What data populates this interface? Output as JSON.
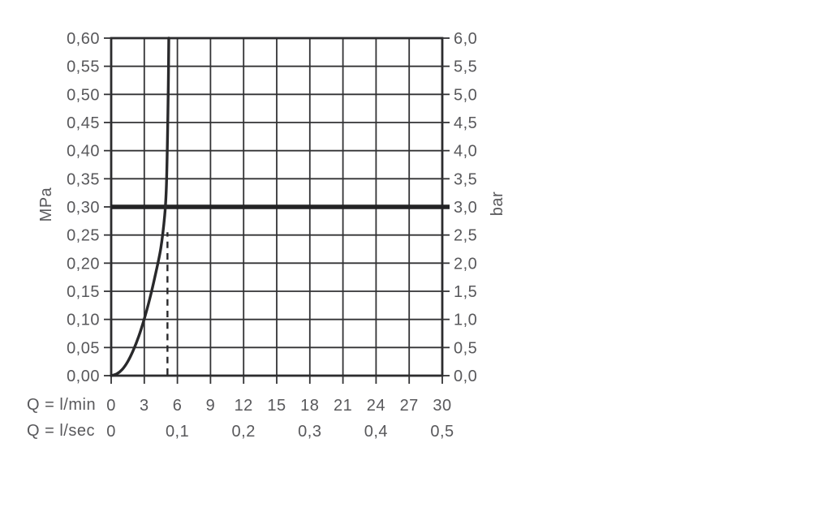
{
  "chart_data": {
    "type": "line",
    "title": "",
    "left_axis": {
      "label": "MPa",
      "min": 0,
      "max": 0.6,
      "step": 0.05,
      "tick_labels": [
        "0,60",
        "0,55",
        "0,50",
        "0,45",
        "0,40",
        "0,35",
        "0,30",
        "0,25",
        "0,20",
        "0,15",
        "0,10",
        "0,05",
        "0,00"
      ]
    },
    "right_axis": {
      "label": "bar",
      "min": 0,
      "max": 6.0,
      "step": 0.5,
      "tick_labels": [
        "6,0",
        "5,5",
        "5,0",
        "4,5",
        "4,0",
        "3,5",
        "3,0",
        "2,5",
        "2,0",
        "1,5",
        "1,0",
        "0,5",
        "0,0"
      ]
    },
    "x_axis_lmin": {
      "label": "Q = l/min",
      "min": 0,
      "max": 30,
      "step": 3,
      "tick_labels": [
        "0",
        "3",
        "6",
        "9",
        "12",
        "15",
        "18",
        "21",
        "24",
        "27",
        "30"
      ]
    },
    "x_axis_lsec": {
      "label": "Q = l/sec",
      "tick_positions_lmin": [
        0,
        6,
        12,
        18,
        24,
        30
      ],
      "tick_labels": [
        "0",
        "0,1",
        "0,2",
        "0,3",
        "0,4",
        "0,5"
      ]
    },
    "grid": {
      "on": true,
      "x_step_lmin": 3,
      "y_step_mpa": 0.05
    },
    "series": [
      {
        "name": "flow-pressure-curve",
        "points_lmin_mpa": [
          [
            0,
            0
          ],
          [
            0.5,
            0.003
          ],
          [
            1,
            0.011
          ],
          [
            1.5,
            0.025
          ],
          [
            2,
            0.045
          ],
          [
            2.5,
            0.07
          ],
          [
            3,
            0.101
          ],
          [
            3.5,
            0.137
          ],
          [
            4,
            0.179
          ],
          [
            4.5,
            0.227
          ],
          [
            4.85,
            0.285
          ],
          [
            5.0,
            0.335
          ],
          [
            5.1,
            0.42
          ],
          [
            5.18,
            0.52
          ],
          [
            5.22,
            0.6
          ]
        ]
      }
    ],
    "reference_lines": [
      {
        "name": "recommended-pressure-line",
        "orientation": "horizontal",
        "value_mpa": 0.3,
        "style": "thick-solid"
      },
      {
        "name": "flow-at-recommended-pressure",
        "orientation": "vertical",
        "value_lmin": 5.1,
        "from_mpa": 0,
        "to_mpa": 0.255,
        "style": "dashed"
      }
    ],
    "colors": {
      "background": "#ffffff",
      "grid": "#333335",
      "axis_border": "#2c2c2e",
      "curve": "#29292b",
      "thick_line": "#232325",
      "tick_label": "#58585b"
    }
  }
}
